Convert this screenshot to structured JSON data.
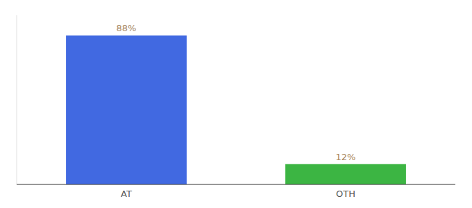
{
  "chart_data": {
    "type": "bar",
    "categories": [
      "AT",
      "OTH"
    ],
    "values": [
      88,
      12
    ],
    "value_labels": [
      "88%",
      "12%"
    ],
    "colors": [
      "#4169e1",
      "#3cb543"
    ],
    "ylim": [
      0,
      100
    ],
    "data_labels": true,
    "tick_labels": "x"
  }
}
